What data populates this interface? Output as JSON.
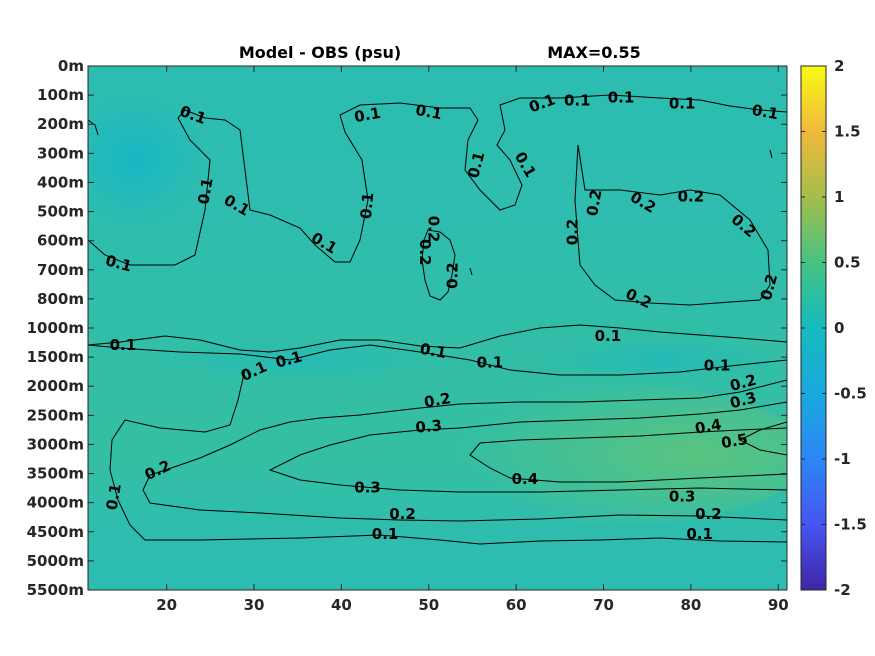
{
  "chart_data": {
    "type": "heatmap",
    "title_left": "Model - OBS (psu)",
    "title_right": "MAX=0.55",
    "y_ticks": [
      "0m",
      "100m",
      "200m",
      "300m",
      "400m",
      "500m",
      "600m",
      "700m",
      "800m",
      "1000m",
      "1500m",
      "2000m",
      "2500m",
      "3000m",
      "3500m",
      "4000m",
      "4500m",
      "5000m",
      "5500m"
    ],
    "x_ticks": [
      20,
      30,
      40,
      50,
      60,
      70,
      80,
      90
    ],
    "xlim": [
      11,
      91
    ],
    "colorbar": {
      "colormap": "parula",
      "range": [
        -2,
        2
      ],
      "ticks": [
        "2",
        "1.5",
        "1",
        "0.5",
        "0",
        "-0.5",
        "-1",
        "-1.5",
        "-2"
      ]
    },
    "contour_labels": [
      {
        "text": "0.1",
        "x": 23,
        "y": 1.7,
        "rot": 20
      },
      {
        "text": "0.1",
        "x": 24.5,
        "y": 4.3,
        "rot": -80
      },
      {
        "text": "0.1",
        "x": 28,
        "y": 4.8,
        "rot": 30
      },
      {
        "text": "0.1",
        "x": 14.5,
        "y": 6.8,
        "rot": 15
      },
      {
        "text": "0.1",
        "x": 38,
        "y": 6.1,
        "rot": 30
      },
      {
        "text": "0.1",
        "x": 43,
        "y": 4.8,
        "rot": -85
      },
      {
        "text": "0.1",
        "x": 43,
        "y": 1.7,
        "rot": -10
      },
      {
        "text": "0.1",
        "x": 50,
        "y": 1.6,
        "rot": 10
      },
      {
        "text": "0.1",
        "x": 55.5,
        "y": 3.4,
        "rot": -75
      },
      {
        "text": "0.1",
        "x": 61,
        "y": 3.4,
        "rot": 60
      },
      {
        "text": "0.1",
        "x": 63,
        "y": 1.3,
        "rot": -20
      },
      {
        "text": "0.1",
        "x": 67,
        "y": 1.2,
        "rot": 0
      },
      {
        "text": "0.1",
        "x": 72,
        "y": 1.1,
        "rot": 0
      },
      {
        "text": "0.1",
        "x": 79,
        "y": 1.3,
        "rot": 0
      },
      {
        "text": "0.1",
        "x": 88.5,
        "y": 1.6,
        "rot": 10
      },
      {
        "text": "0.2",
        "x": 49.5,
        "y": 6.4,
        "rot": 90
      },
      {
        "text": "0.2",
        "x": 52.8,
        "y": 7.2,
        "rot": -90
      },
      {
        "text": "0.2",
        "x": 50.5,
        "y": 5.6,
        "rot": 90
      },
      {
        "text": "0.2",
        "x": 66.5,
        "y": 5.7,
        "rot": -90
      },
      {
        "text": "0.2",
        "x": 69,
        "y": 4.7,
        "rot": -80
      },
      {
        "text": "0.2",
        "x": 74.5,
        "y": 4.7,
        "rot": 30
      },
      {
        "text": "0.2",
        "x": 80,
        "y": 4.5,
        "rot": 0
      },
      {
        "text": "0.2",
        "x": 86,
        "y": 5.5,
        "rot": 40
      },
      {
        "text": "0.2",
        "x": 89,
        "y": 7.6,
        "rot": -75
      },
      {
        "text": "0.2",
        "x": 74,
        "y": 8.0,
        "rot": 25
      },
      {
        "text": "0.1",
        "x": 15,
        "y": 9.6,
        "rot": 0
      },
      {
        "text": "0.1",
        "x": 50.5,
        "y": 9.8,
        "rot": 10
      },
      {
        "text": "0.1",
        "x": 57,
        "y": 10.2,
        "rot": 0
      },
      {
        "text": "0.1",
        "x": 70.5,
        "y": 9.3,
        "rot": 0
      },
      {
        "text": "0.1",
        "x": 30,
        "y": 10.5,
        "rot": -25
      },
      {
        "text": "0.1",
        "x": 34,
        "y": 10.1,
        "rot": -15
      },
      {
        "text": "0.1",
        "x": 83,
        "y": 10.3,
        "rot": 0
      },
      {
        "text": "0.2",
        "x": 86,
        "y": 10.9,
        "rot": -15
      },
      {
        "text": "0.3",
        "x": 86,
        "y": 11.5,
        "rot": -15
      },
      {
        "text": "0.2",
        "x": 51,
        "y": 11.5,
        "rot": -10
      },
      {
        "text": "0.3",
        "x": 50,
        "y": 12.4,
        "rot": -5
      },
      {
        "text": "0.4",
        "x": 82,
        "y": 12.4,
        "rot": -10
      },
      {
        "text": "0.5",
        "x": 85,
        "y": 12.9,
        "rot": -10
      },
      {
        "text": "0.4",
        "x": 61,
        "y": 14.2,
        "rot": 0
      },
      {
        "text": "0.2",
        "x": 19,
        "y": 13.9,
        "rot": -25
      },
      {
        "text": "0.1",
        "x": 14,
        "y": 14.8,
        "rot": -80
      },
      {
        "text": "0.3",
        "x": 43,
        "y": 14.5,
        "rot": 0
      },
      {
        "text": "0.3",
        "x": 79,
        "y": 14.8,
        "rot": 0
      },
      {
        "text": "0.2",
        "x": 47,
        "y": 15.4,
        "rot": 0
      },
      {
        "text": "0.2",
        "x": 82,
        "y": 15.4,
        "rot": 0
      },
      {
        "text": "0.1",
        "x": 45,
        "y": 16.1,
        "rot": 0
      },
      {
        "text": "0.1",
        "x": 81,
        "y": 16.1,
        "rot": 0
      }
    ]
  }
}
